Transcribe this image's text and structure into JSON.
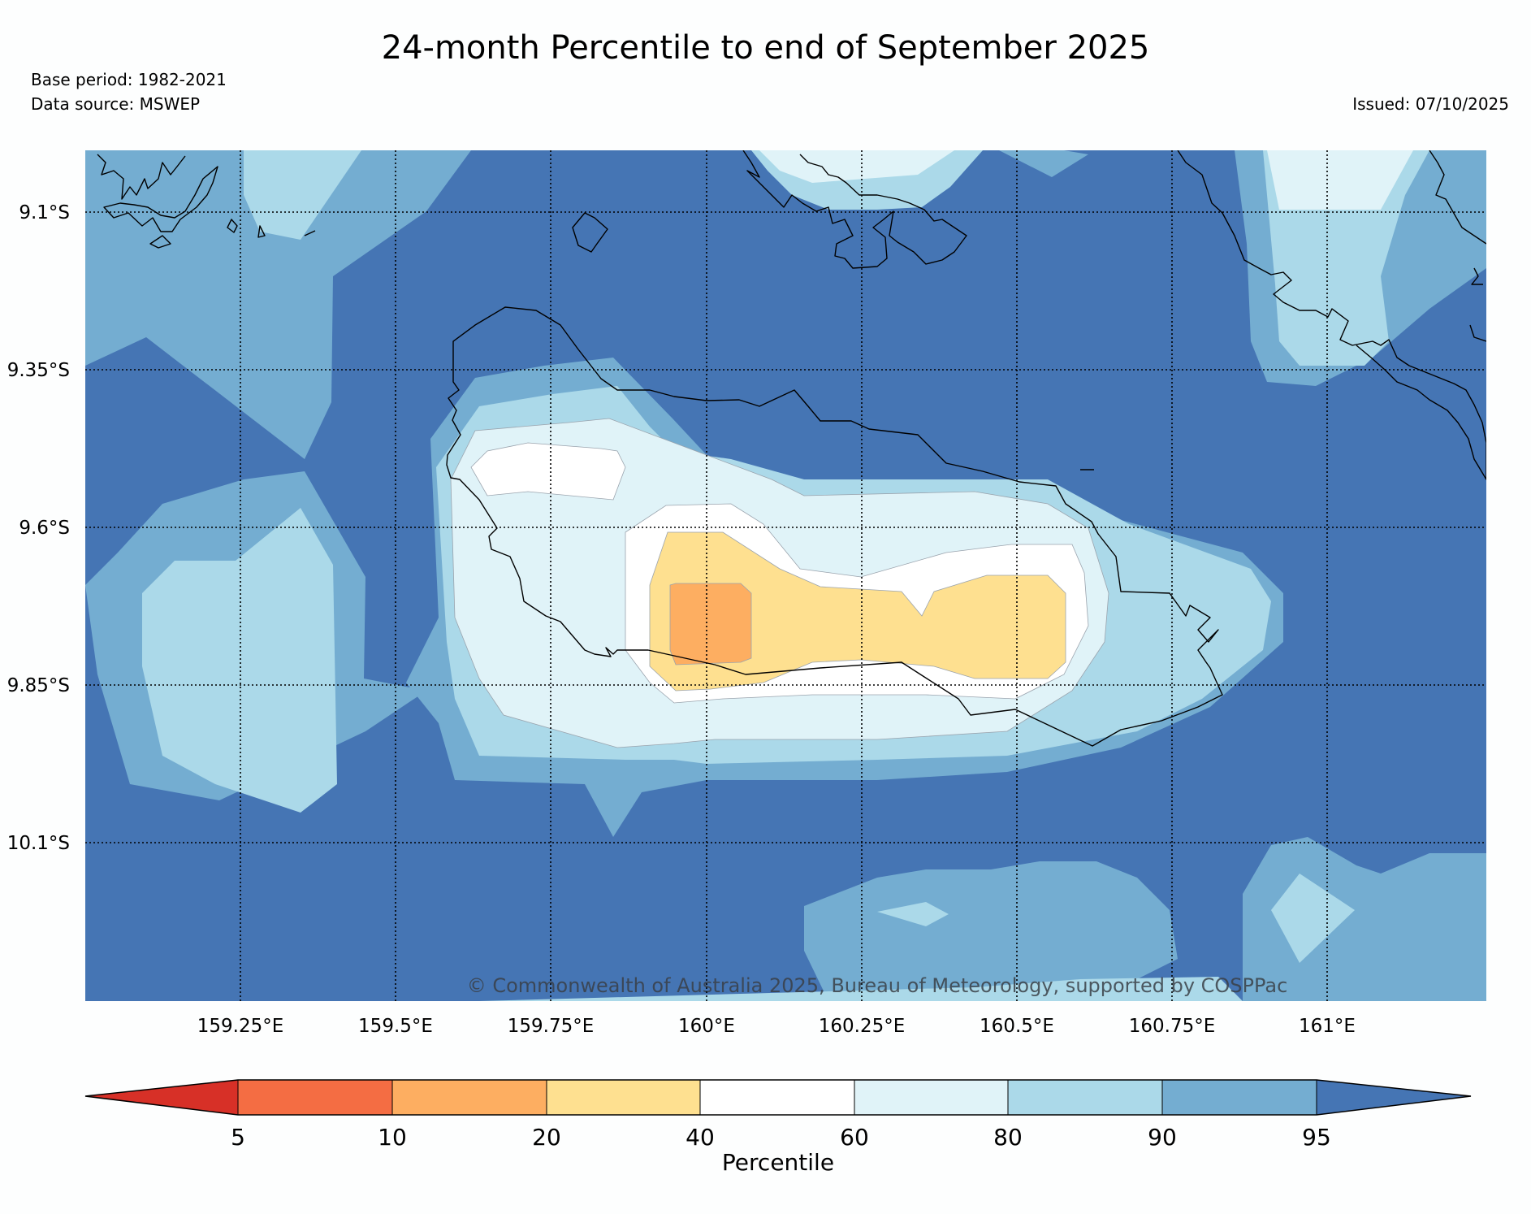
{
  "title": "24-month Percentile to end of September 2025",
  "base_period": "Base period: 1982-2021",
  "data_source": "Data source: MSWEP",
  "issued": "Issued: 07/10/2025",
  "copyright": "© Commonwealth of Australia 2025, Bureau of Meteorology, supported by COSPPac",
  "colors": {
    "p95plus": "#4575b4",
    "p90_95": "#74add1",
    "p80_90": "#abd9e9",
    "p60_80": "#e0f3f8",
    "p40_60": "#ffffff",
    "p20_40": "#fee090",
    "p10_20": "#fdae61",
    "p5_10": "#f46d43",
    "p0_5": "#d73027"
  },
  "chart_data": {
    "type": "heatmap",
    "title": "24-month Percentile to end of September 2025",
    "xlabel": "",
    "ylabel": "",
    "x_ticks": [
      "159.25°E",
      "159.5°E",
      "159.75°E",
      "160°E",
      "160.25°E",
      "160.5°E",
      "160.75°E",
      "161°E"
    ],
    "y_ticks": [
      "9.1°S",
      "9.35°S",
      "9.6°S",
      "9.85°S",
      "10.1°S"
    ],
    "x_range_deg_e": [
      159.0,
      161.25
    ],
    "y_range_deg_s": [
      9.0,
      10.35
    ],
    "grid": true,
    "colorbar": {
      "label": "Percentile",
      "boundaries": [
        "5",
        "10",
        "20",
        "40",
        "60",
        "80",
        "90",
        "95"
      ],
      "extend": "both",
      "orientation": "horizontal"
    },
    "features": [
      {
        "name": "centre of deficit (10-20 percentile)",
        "lon": 160.0,
        "lat": -9.75
      },
      {
        "name": "surrounding 20-40 percentile band",
        "lon": [
          159.9,
          160.55
        ],
        "lat": [
          -9.65,
          -9.85
        ]
      }
    ]
  }
}
